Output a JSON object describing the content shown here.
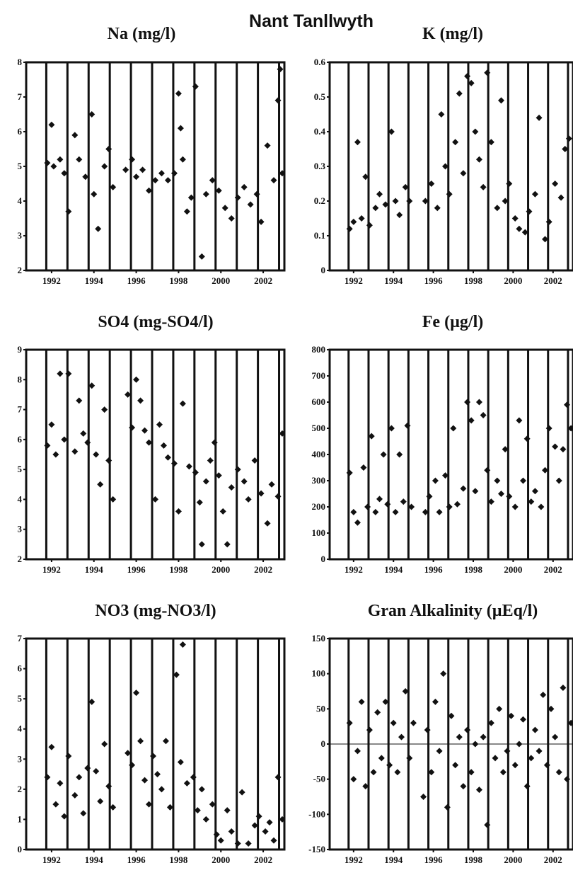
{
  "figure": {
    "title": "Nant Tanllwyth"
  },
  "chart_data": [
    {
      "type": "scatter",
      "title": "Na (mg/l)",
      "ylim": [
        2,
        8
      ],
      "y_ticks": [
        2,
        3,
        4,
        5,
        6,
        7,
        8
      ],
      "xlim": [
        1990.8,
        2003
      ],
      "x_ticks": [
        1992,
        1994,
        1996,
        1998,
        2000,
        2002
      ],
      "vertical_gridlines": [
        1991.75,
        1992.75,
        1993.75,
        1994.75,
        1995.75,
        1996.75,
        1997.75,
        1998.75,
        1999.75,
        2000.75,
        2001.75,
        2002.75
      ],
      "marker": "diamond",
      "points": [
        [
          1991.8,
          5.1
        ],
        [
          1992.0,
          6.2
        ],
        [
          1992.1,
          5.0
        ],
        [
          1992.4,
          5.2
        ],
        [
          1992.6,
          4.8
        ],
        [
          1992.8,
          3.7
        ],
        [
          1993.1,
          5.9
        ],
        [
          1993.3,
          5.2
        ],
        [
          1993.6,
          4.7
        ],
        [
          1993.9,
          6.5
        ],
        [
          1994.0,
          4.2
        ],
        [
          1994.2,
          3.2
        ],
        [
          1994.5,
          5.0
        ],
        [
          1994.7,
          5.5
        ],
        [
          1994.9,
          4.4
        ],
        [
          1995.5,
          4.9
        ],
        [
          1995.8,
          5.2
        ],
        [
          1996.0,
          4.7
        ],
        [
          1996.3,
          4.9
        ],
        [
          1996.6,
          4.3
        ],
        [
          1996.9,
          4.6
        ],
        [
          1997.2,
          4.8
        ],
        [
          1997.5,
          4.6
        ],
        [
          1997.8,
          4.8
        ],
        [
          1998.0,
          7.1
        ],
        [
          1998.1,
          6.1
        ],
        [
          1998.2,
          5.2
        ],
        [
          1998.4,
          3.7
        ],
        [
          1998.6,
          4.1
        ],
        [
          1998.8,
          7.3
        ],
        [
          1999.1,
          2.4
        ],
        [
          1999.3,
          4.2
        ],
        [
          1999.6,
          4.6
        ],
        [
          1999.9,
          4.3
        ],
        [
          2000.2,
          3.8
        ],
        [
          2000.5,
          3.5
        ],
        [
          2000.8,
          4.1
        ],
        [
          2001.1,
          4.4
        ],
        [
          2001.4,
          3.9
        ],
        [
          2001.7,
          4.2
        ],
        [
          2001.9,
          3.4
        ],
        [
          2002.2,
          5.6
        ],
        [
          2002.5,
          4.6
        ],
        [
          2002.7,
          6.9
        ],
        [
          2002.8,
          7.8
        ],
        [
          2002.9,
          4.8
        ]
      ]
    },
    {
      "type": "scatter",
      "title": "K (mg/l)",
      "ylim": [
        0,
        0.6
      ],
      "y_ticks": [
        0,
        0.1,
        0.2,
        0.3,
        0.4,
        0.5,
        0.6
      ],
      "xlim": [
        1990.8,
        2003
      ],
      "x_ticks": [
        1992,
        1994,
        1996,
        1998,
        2000,
        2002
      ],
      "vertical_gridlines": [
        1991.75,
        1992.75,
        1993.75,
        1994.75,
        1995.75,
        1996.75,
        1997.75,
        1998.75,
        1999.75,
        2000.75,
        2001.75,
        2002.75
      ],
      "marker": "diamond",
      "points": [
        [
          1991.8,
          0.12
        ],
        [
          1992.0,
          0.14
        ],
        [
          1992.2,
          0.37
        ],
        [
          1992.4,
          0.15
        ],
        [
          1992.6,
          0.27
        ],
        [
          1992.8,
          0.13
        ],
        [
          1993.1,
          0.18
        ],
        [
          1993.3,
          0.22
        ],
        [
          1993.6,
          0.19
        ],
        [
          1993.9,
          0.4
        ],
        [
          1994.1,
          0.2
        ],
        [
          1994.3,
          0.16
        ],
        [
          1994.6,
          0.24
        ],
        [
          1994.8,
          0.2
        ],
        [
          1995.6,
          0.2
        ],
        [
          1995.9,
          0.25
        ],
        [
          1996.2,
          0.18
        ],
        [
          1996.4,
          0.45
        ],
        [
          1996.6,
          0.3
        ],
        [
          1996.8,
          0.22
        ],
        [
          1997.1,
          0.37
        ],
        [
          1997.3,
          0.51
        ],
        [
          1997.5,
          0.28
        ],
        [
          1997.7,
          0.56
        ],
        [
          1997.9,
          0.54
        ],
        [
          1998.1,
          0.4
        ],
        [
          1998.3,
          0.32
        ],
        [
          1998.5,
          0.24
        ],
        [
          1998.7,
          0.57
        ],
        [
          1998.9,
          0.37
        ],
        [
          1999.2,
          0.18
        ],
        [
          1999.4,
          0.49
        ],
        [
          1999.6,
          0.2
        ],
        [
          1999.8,
          0.25
        ],
        [
          2000.1,
          0.15
        ],
        [
          2000.3,
          0.12
        ],
        [
          2000.6,
          0.11
        ],
        [
          2000.8,
          0.17
        ],
        [
          2001.1,
          0.22
        ],
        [
          2001.3,
          0.44
        ],
        [
          2001.6,
          0.09
        ],
        [
          2001.8,
          0.14
        ],
        [
          2002.1,
          0.25
        ],
        [
          2002.4,
          0.21
        ],
        [
          2002.6,
          0.35
        ],
        [
          2002.8,
          0.38
        ]
      ]
    },
    {
      "type": "scatter",
      "title": "SO4 (mg-SO4/l)",
      "ylim": [
        2,
        9
      ],
      "y_ticks": [
        2,
        3,
        4,
        5,
        6,
        7,
        8,
        9
      ],
      "xlim": [
        1990.8,
        2003
      ],
      "x_ticks": [
        1992,
        1994,
        1996,
        1998,
        2000,
        2002
      ],
      "vertical_gridlines": [
        1991.75,
        1992.75,
        1993.75,
        1994.75,
        1995.75,
        1996.75,
        1997.75,
        1998.75,
        1999.75,
        2000.75,
        2001.75,
        2002.75
      ],
      "marker": "diamond",
      "points": [
        [
          1991.8,
          5.8
        ],
        [
          1992.0,
          6.5
        ],
        [
          1992.2,
          5.5
        ],
        [
          1992.4,
          8.2
        ],
        [
          1992.6,
          6.0
        ],
        [
          1992.8,
          8.2
        ],
        [
          1993.1,
          5.6
        ],
        [
          1993.3,
          7.3
        ],
        [
          1993.5,
          6.2
        ],
        [
          1993.7,
          5.9
        ],
        [
          1993.9,
          7.8
        ],
        [
          1994.1,
          5.5
        ],
        [
          1994.3,
          4.5
        ],
        [
          1994.5,
          7.0
        ],
        [
          1994.7,
          5.3
        ],
        [
          1994.9,
          4.0
        ],
        [
          1995.6,
          7.5
        ],
        [
          1995.8,
          6.4
        ],
        [
          1996.0,
          8.0
        ],
        [
          1996.2,
          7.3
        ],
        [
          1996.4,
          6.3
        ],
        [
          1996.6,
          5.9
        ],
        [
          1996.9,
          4.0
        ],
        [
          1997.1,
          6.5
        ],
        [
          1997.3,
          5.8
        ],
        [
          1997.5,
          5.4
        ],
        [
          1997.8,
          5.2
        ],
        [
          1998.0,
          3.6
        ],
        [
          1998.2,
          7.2
        ],
        [
          1998.5,
          5.1
        ],
        [
          1998.8,
          4.9
        ],
        [
          1999.0,
          3.9
        ],
        [
          1999.1,
          2.5
        ],
        [
          1999.3,
          4.6
        ],
        [
          1999.5,
          5.3
        ],
        [
          1999.7,
          5.9
        ],
        [
          1999.9,
          4.8
        ],
        [
          2000.1,
          3.6
        ],
        [
          2000.3,
          2.5
        ],
        [
          2000.5,
          4.4
        ],
        [
          2000.8,
          5.0
        ],
        [
          2001.1,
          4.6
        ],
        [
          2001.3,
          4.0
        ],
        [
          2001.6,
          5.3
        ],
        [
          2001.9,
          4.2
        ],
        [
          2002.2,
          3.2
        ],
        [
          2002.4,
          4.5
        ],
        [
          2002.7,
          4.1
        ],
        [
          2002.9,
          6.2
        ]
      ]
    },
    {
      "type": "scatter",
      "title": "Fe (µg/l)",
      "ylim": [
        0,
        800
      ],
      "y_ticks": [
        0,
        100,
        200,
        300,
        400,
        500,
        600,
        700,
        800
      ],
      "xlim": [
        1990.8,
        2003
      ],
      "x_ticks": [
        1992,
        1994,
        1996,
        1998,
        2000,
        2002
      ],
      "vertical_gridlines": [
        1991.75,
        1992.75,
        1993.75,
        1994.75,
        1995.75,
        1996.75,
        1997.75,
        1998.75,
        1999.75,
        2000.75,
        2001.75,
        2002.75
      ],
      "marker": "diamond",
      "points": [
        [
          1991.8,
          330
        ],
        [
          1992.0,
          180
        ],
        [
          1992.2,
          140
        ],
        [
          1992.5,
          350
        ],
        [
          1992.7,
          200
        ],
        [
          1992.9,
          470
        ],
        [
          1993.1,
          180
        ],
        [
          1993.3,
          230
        ],
        [
          1993.5,
          400
        ],
        [
          1993.7,
          210
        ],
        [
          1993.9,
          500
        ],
        [
          1994.1,
          180
        ],
        [
          1994.3,
          400
        ],
        [
          1994.5,
          220
        ],
        [
          1994.7,
          510
        ],
        [
          1994.9,
          200
        ],
        [
          1995.6,
          180
        ],
        [
          1995.8,
          240
        ],
        [
          1996.1,
          300
        ],
        [
          1996.3,
          180
        ],
        [
          1996.6,
          320
        ],
        [
          1996.8,
          200
        ],
        [
          1997.0,
          500
        ],
        [
          1997.2,
          210
        ],
        [
          1997.5,
          270
        ],
        [
          1997.7,
          600
        ],
        [
          1997.9,
          530
        ],
        [
          1998.1,
          260
        ],
        [
          1998.3,
          600
        ],
        [
          1998.5,
          550
        ],
        [
          1998.7,
          340
        ],
        [
          1998.9,
          220
        ],
        [
          1999.2,
          300
        ],
        [
          1999.4,
          250
        ],
        [
          1999.6,
          420
        ],
        [
          1999.8,
          240
        ],
        [
          2000.1,
          200
        ],
        [
          2000.3,
          530
        ],
        [
          2000.5,
          300
        ],
        [
          2000.7,
          460
        ],
        [
          2000.9,
          220
        ],
        [
          2001.1,
          260
        ],
        [
          2001.4,
          200
        ],
        [
          2001.6,
          340
        ],
        [
          2001.8,
          500
        ],
        [
          2002.1,
          430
        ],
        [
          2002.3,
          300
        ],
        [
          2002.5,
          420
        ],
        [
          2002.7,
          590
        ],
        [
          2002.9,
          500
        ]
      ]
    },
    {
      "type": "scatter",
      "title": "NO3 (mg-NO3/l)",
      "ylim": [
        0,
        7
      ],
      "y_ticks": [
        0,
        1,
        2,
        3,
        4,
        5,
        6,
        7
      ],
      "xlim": [
        1990.8,
        2003
      ],
      "x_ticks": [
        1992,
        1994,
        1996,
        1998,
        2000,
        2002
      ],
      "vertical_gridlines": [
        1991.75,
        1992.75,
        1993.75,
        1994.75,
        1995.75,
        1996.75,
        1997.75,
        1998.75,
        1999.75,
        2000.75,
        2001.75,
        2002.75
      ],
      "marker": "diamond",
      "points": [
        [
          1991.8,
          2.4
        ],
        [
          1992.0,
          3.4
        ],
        [
          1992.2,
          1.5
        ],
        [
          1992.4,
          2.2
        ],
        [
          1992.6,
          1.1
        ],
        [
          1992.8,
          3.1
        ],
        [
          1993.1,
          1.8
        ],
        [
          1993.3,
          2.4
        ],
        [
          1993.5,
          1.2
        ],
        [
          1993.7,
          2.7
        ],
        [
          1993.9,
          4.9
        ],
        [
          1994.1,
          2.6
        ],
        [
          1994.3,
          1.6
        ],
        [
          1994.5,
          3.5
        ],
        [
          1994.7,
          2.1
        ],
        [
          1994.9,
          1.4
        ],
        [
          1995.6,
          3.2
        ],
        [
          1995.8,
          2.8
        ],
        [
          1996.0,
          5.2
        ],
        [
          1996.2,
          3.6
        ],
        [
          1996.4,
          2.3
        ],
        [
          1996.6,
          1.5
        ],
        [
          1996.8,
          3.1
        ],
        [
          1997.0,
          2.5
        ],
        [
          1997.2,
          2.0
        ],
        [
          1997.4,
          3.6
        ],
        [
          1997.6,
          1.4
        ],
        [
          1997.9,
          5.8
        ],
        [
          1998.1,
          2.9
        ],
        [
          1998.2,
          6.8
        ],
        [
          1998.4,
          2.2
        ],
        [
          1998.7,
          2.4
        ],
        [
          1998.9,
          1.3
        ],
        [
          1999.1,
          2.0
        ],
        [
          1999.3,
          1.0
        ],
        [
          1999.6,
          1.5
        ],
        [
          1999.8,
          0.5
        ],
        [
          2000.0,
          0.3
        ],
        [
          2000.3,
          1.3
        ],
        [
          2000.5,
          0.6
        ],
        [
          2000.8,
          0.2
        ],
        [
          2001.0,
          1.9
        ],
        [
          2001.3,
          0.2
        ],
        [
          2001.6,
          0.8
        ],
        [
          2001.8,
          1.1
        ],
        [
          2002.1,
          0.6
        ],
        [
          2002.3,
          0.9
        ],
        [
          2002.5,
          0.3
        ],
        [
          2002.7,
          2.4
        ],
        [
          2002.9,
          1.0
        ]
      ]
    },
    {
      "type": "scatter",
      "title": "Gran Alkalinity (µEq/l)",
      "ylim": [
        -150,
        150
      ],
      "y_ticks": [
        -150,
        -100,
        -50,
        0,
        50,
        100,
        150
      ],
      "xlim": [
        1990.8,
        2003
      ],
      "x_ticks": [
        1992,
        1994,
        1996,
        1998,
        2000,
        2002
      ],
      "vertical_gridlines": [
        1991.75,
        1992.75,
        1993.75,
        1994.75,
        1995.75,
        1996.75,
        1997.75,
        1998.75,
        1999.75,
        2000.75,
        2001.75,
        2002.75
      ],
      "zero_line": true,
      "marker": "diamond",
      "points": [
        [
          1991.8,
          30
        ],
        [
          1992.0,
          -50
        ],
        [
          1992.2,
          -10
        ],
        [
          1992.4,
          60
        ],
        [
          1992.6,
          -60
        ],
        [
          1992.8,
          20
        ],
        [
          1993.0,
          -40
        ],
        [
          1993.2,
          45
        ],
        [
          1993.4,
          -20
        ],
        [
          1993.6,
          60
        ],
        [
          1993.8,
          -30
        ],
        [
          1994.0,
          30
        ],
        [
          1994.2,
          -40
        ],
        [
          1994.4,
          10
        ],
        [
          1994.6,
          75
        ],
        [
          1994.8,
          -20
        ],
        [
          1995.0,
          30
        ],
        [
          1995.5,
          -75
        ],
        [
          1995.7,
          20
        ],
        [
          1995.9,
          -40
        ],
        [
          1996.1,
          60
        ],
        [
          1996.3,
          -10
        ],
        [
          1996.5,
          100
        ],
        [
          1996.7,
          -90
        ],
        [
          1996.9,
          40
        ],
        [
          1997.1,
          -30
        ],
        [
          1997.3,
          10
        ],
        [
          1997.5,
          -60
        ],
        [
          1997.7,
          20
        ],
        [
          1997.9,
          -40
        ],
        [
          1998.1,
          0
        ],
        [
          1998.3,
          -65
        ],
        [
          1998.5,
          10
        ],
        [
          1998.7,
          -115
        ],
        [
          1998.9,
          30
        ],
        [
          1999.1,
          -20
        ],
        [
          1999.3,
          50
        ],
        [
          1999.5,
          -40
        ],
        [
          1999.7,
          -10
        ],
        [
          1999.9,
          40
        ],
        [
          2000.1,
          -30
        ],
        [
          2000.3,
          0
        ],
        [
          2000.5,
          35
        ],
        [
          2000.7,
          -60
        ],
        [
          2000.9,
          -20
        ],
        [
          2001.1,
          20
        ],
        [
          2001.3,
          -10
        ],
        [
          2001.5,
          70
        ],
        [
          2001.7,
          -30
        ],
        [
          2001.9,
          50
        ],
        [
          2002.1,
          10
        ],
        [
          2002.3,
          -40
        ],
        [
          2002.5,
          80
        ],
        [
          2002.7,
          -50
        ],
        [
          2002.9,
          30
        ]
      ]
    }
  ]
}
